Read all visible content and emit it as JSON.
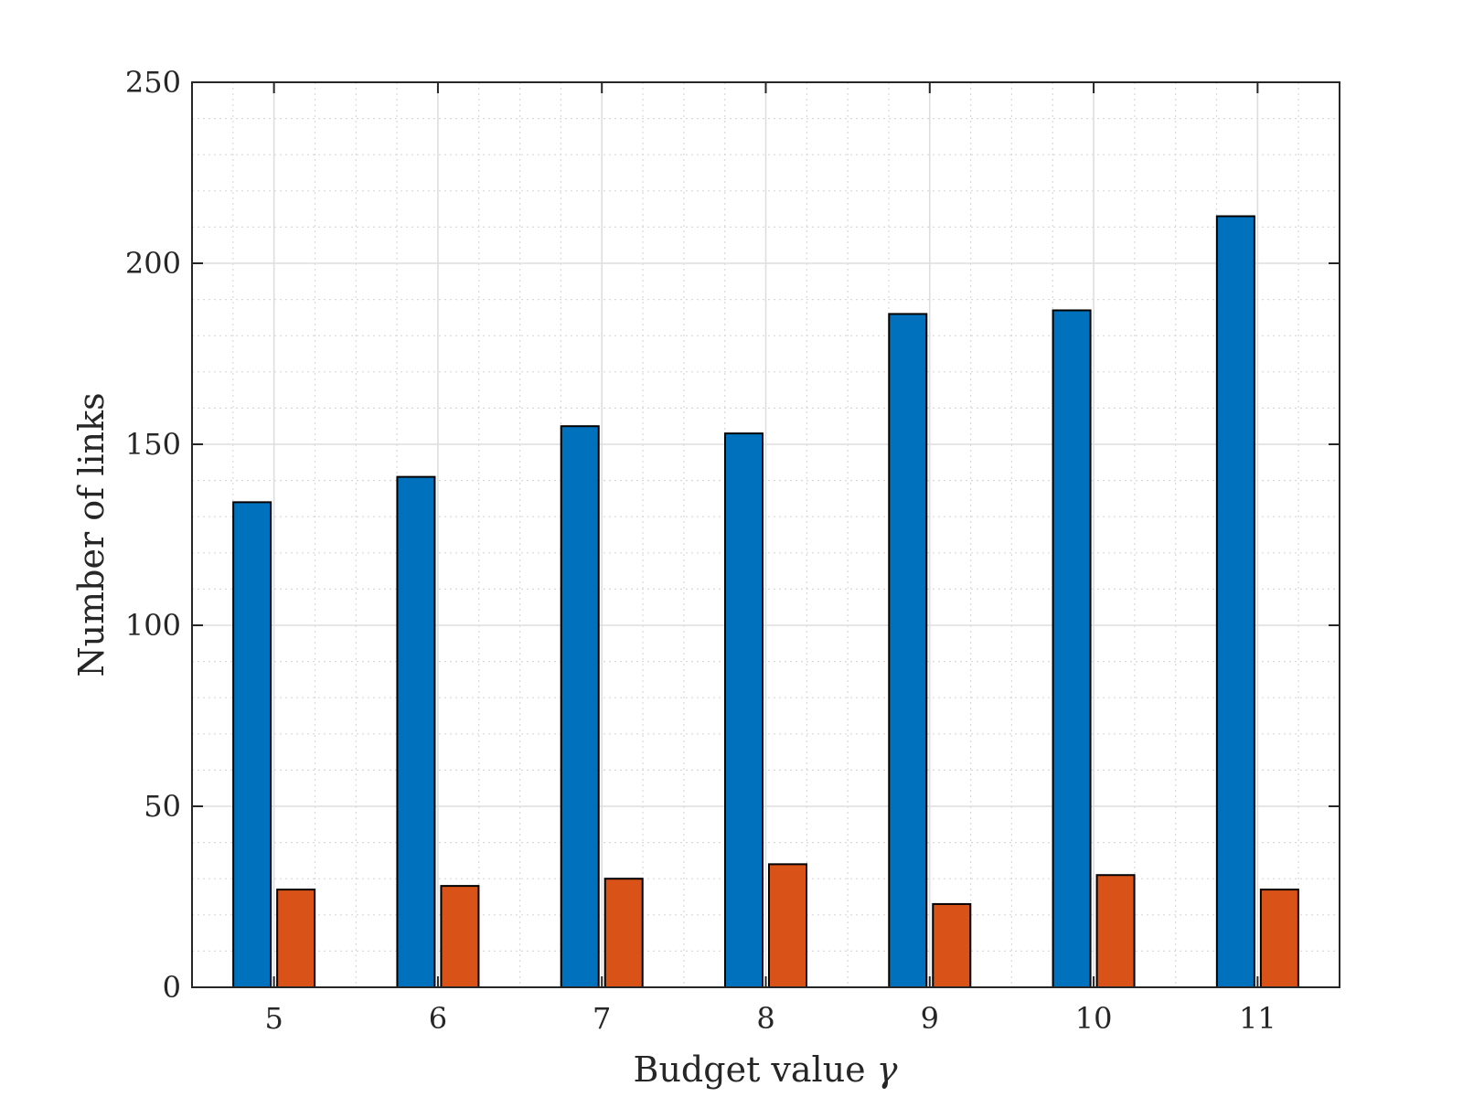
{
  "chart_data": {
    "type": "bar",
    "title": "",
    "xlabel": "Budget value",
    "xlabel_symbol": "γ",
    "ylabel": "Number of links",
    "categories": [
      "5",
      "6",
      "7",
      "8",
      "9",
      "10",
      "11"
    ],
    "series": [
      {
        "color": "#0072BD",
        "values": [
          134,
          141,
          155,
          153,
          186,
          187,
          213
        ]
      },
      {
        "color": "#D95319",
        "values": [
          27,
          28,
          30,
          34,
          23,
          31,
          27
        ]
      }
    ],
    "ylim": [
      0,
      250
    ],
    "yticks": [
      0,
      50,
      100,
      150,
      200,
      250
    ],
    "yticks_minor_step": 10,
    "grid": true,
    "minor_grid": true,
    "legend": "none"
  }
}
